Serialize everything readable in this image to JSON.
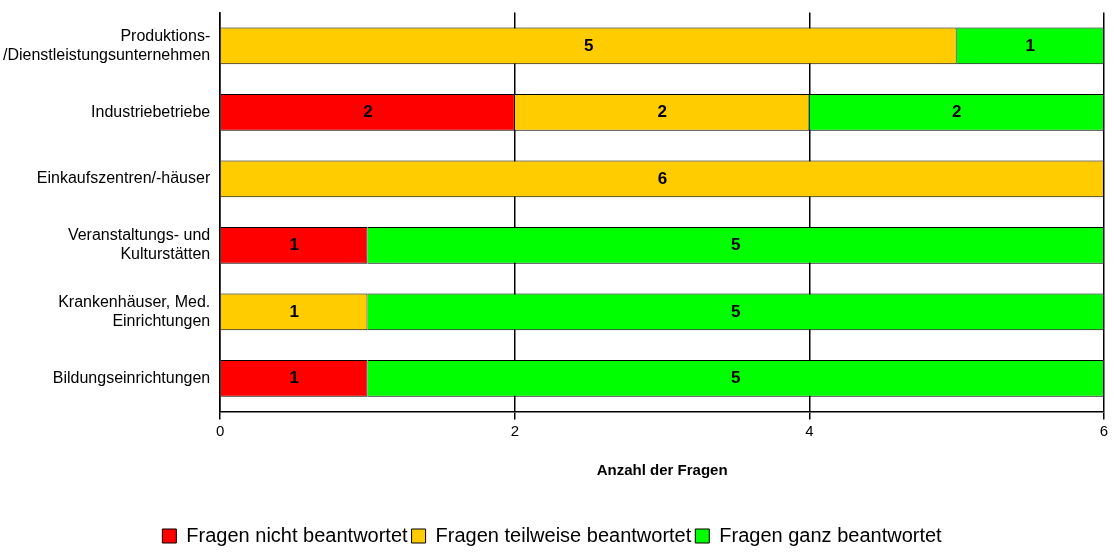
{
  "chart_data": {
    "type": "bar",
    "orientation": "horizontal",
    "stacked": true,
    "categories": [
      "Produktions-\n/Dienstleistungsunternehmen",
      "Industriebetriebe",
      "Einkaufszentren/-häuser",
      "Veranstaltungs- und\nKulturstätten",
      "Krankenhäuser, Med.\nEinrichtungen",
      "Bildungseinrichtungen"
    ],
    "series": [
      {
        "name": "Fragen nicht beantwortet",
        "color": "#ff0000",
        "values": [
          null,
          2,
          null,
          1,
          null,
          1
        ]
      },
      {
        "name": "Fragen teilweise beantwortet",
        "color": "#ffcc00",
        "values": [
          5,
          2,
          6,
          null,
          1,
          null
        ]
      },
      {
        "name": "Fragen ganz beantwortet",
        "color": "#00ff00",
        "values": [
          1,
          2,
          null,
          5,
          5,
          5
        ]
      }
    ],
    "xlabel": "Anzahl der Fragen",
    "xlim": [
      0,
      6
    ],
    "xticks": [
      0,
      2,
      4,
      6
    ],
    "grid": "x",
    "legend": "bottom",
    "data_labels": true
  }
}
